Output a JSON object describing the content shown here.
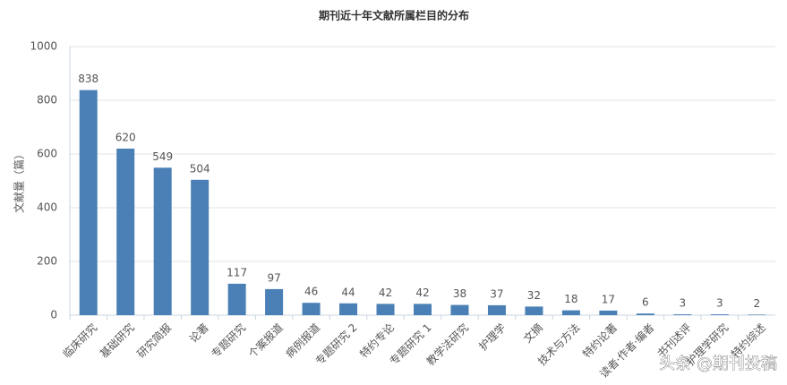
{
  "chart_data": {
    "type": "bar",
    "title": "期刊近十年文献所属栏目的分布",
    "y_label": "文献量（篇）",
    "categories": [
      "临床研究",
      "基础研究",
      "研究简报",
      "论著",
      "专题研究",
      "个案报道",
      "病例报道",
      "专题研究 2",
      "特约专论",
      "专题研究 1",
      "教学法研究",
      "护理学",
      "文摘",
      "技术与方法",
      "特约论著",
      "读者·作者·编者",
      "书刊述评",
      "护理学研究",
      "特约综述"
    ],
    "values": [
      838,
      620,
      549,
      504,
      117,
      97,
      46,
      44,
      42,
      42,
      38,
      37,
      32,
      18,
      17,
      6,
      3,
      3,
      2
    ],
    "color": "#4a80b5",
    "ylim": [
      0,
      1000
    ],
    "yticks": [
      0,
      200,
      400,
      600,
      800,
      1000
    ],
    "grid": true,
    "watermark": "头条 @期刊投稿"
  }
}
